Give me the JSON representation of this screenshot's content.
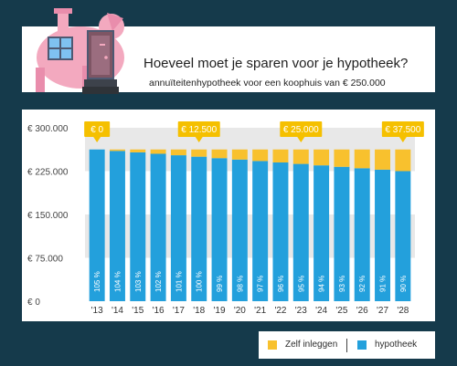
{
  "header": {
    "title": "Hoeveel moet je sparen voor je hypotheek?",
    "subtitle": "annuïteitenhypotheek voor een koophuis van € 250.000"
  },
  "colors": {
    "background": "#153a4b",
    "hypotheek": "#23a0dc",
    "zelf_inleggen": "#f8c12e",
    "callout": "#f5c000",
    "grid_band": "#e8e8e8",
    "piggy_pink": "#f3a9bf"
  },
  "legend": {
    "items": [
      {
        "label": "Zelf inleggen",
        "color": "#f8c12e"
      },
      {
        "label": "hypotheek",
        "color": "#23a0dc"
      }
    ]
  },
  "chart_data": {
    "type": "bar",
    "categories": [
      "'13",
      "'14",
      "'15",
      "'16",
      "'17",
      "'18",
      "'19",
      "'20",
      "'21",
      "'22",
      "'23",
      "'24",
      "'25",
      "'26",
      "'27",
      "'28"
    ],
    "ylim": [
      0,
      300000
    ],
    "y_ticks": [
      0,
      75000,
      150000,
      225000,
      300000
    ],
    "y_tick_labels": [
      "€  0",
      "€  75.000",
      "€ 150.000",
      "€ 225.000",
      "€ 300.000"
    ],
    "series": [
      {
        "name": "hypotheek",
        "values": [
          262500,
          260000,
          257500,
          255000,
          252500,
          250000,
          247500,
          245000,
          242500,
          240000,
          237500,
          235000,
          232500,
          230000,
          227500,
          225000
        ]
      },
      {
        "name": "Zelf inleggen",
        "values": [
          0,
          2500,
          5000,
          7500,
          10000,
          12500,
          15000,
          17500,
          20000,
          22500,
          25000,
          27500,
          30000,
          32500,
          35000,
          37500
        ]
      }
    ],
    "data_labels": [
      "105 %",
      "104 %",
      "103 %",
      "102 %",
      "101 %",
      "100 %",
      "99 %",
      "98 %",
      "97 %",
      "96 %",
      "95 %",
      "94 %",
      "93 %",
      "92 %",
      "91 %",
      "90 %"
    ],
    "annotations": [
      {
        "category": "'13",
        "text": "€ 0"
      },
      {
        "category": "'18",
        "text": "€ 12.500"
      },
      {
        "category": "'23",
        "text": "€ 25.000"
      },
      {
        "category": "'28",
        "text": "€ 37.500"
      }
    ]
  }
}
